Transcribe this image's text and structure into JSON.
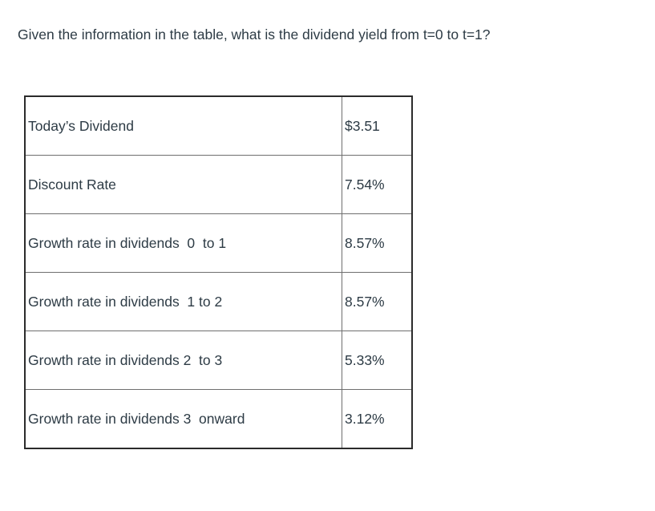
{
  "question": {
    "text": "Given the information in the table, what is the dividend yield from t=0 to t=1?"
  },
  "table": {
    "rows": [
      {
        "label": "Today’s Dividend",
        "value": "$3.51"
      },
      {
        "label": "Discount Rate",
        "value": "7.54%"
      },
      {
        "label": "Growth rate in dividends  0  to 1",
        "value": "8.57%"
      },
      {
        "label": "Growth rate in dividends  1 to 2",
        "value": "8.57%"
      },
      {
        "label": "Growth rate in dividends 2  to 3",
        "value": "5.33%"
      },
      {
        "label": "Growth rate in dividends 3  onward",
        "value": "3.12%"
      }
    ]
  },
  "colors": {
    "text": "#2d3b45",
    "border_outer": "#2b2b2b",
    "border_inner": "#6f6f6f",
    "background": "#ffffff"
  }
}
